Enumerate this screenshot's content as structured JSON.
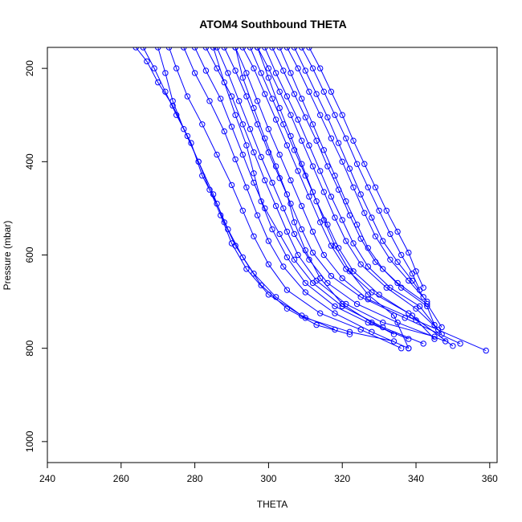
{
  "chart_data": {
    "type": "line",
    "title": "ATOM4 Southbound THETA",
    "xlabel": "THETA",
    "ylabel": "Pressure (mbar)",
    "xlim": [
      240,
      362
    ],
    "ylim": [
      1045,
      155
    ],
    "y_reversed": true,
    "grid": false,
    "legend": "none",
    "markers": "open-circle",
    "x_ticks": [
      240,
      260,
      280,
      300,
      320,
      340,
      360
    ],
    "y_ticks": [
      200,
      400,
      600,
      800,
      1000
    ],
    "series_color": "#0000ff",
    "series": [
      {
        "points": [
          [
            264,
            155
          ],
          [
            267,
            185
          ],
          [
            270,
            230
          ],
          [
            274,
            280
          ],
          [
            278,
            345
          ],
          [
            281,
            400
          ],
          [
            285,
            470
          ],
          [
            288,
            530
          ],
          [
            291,
            580
          ],
          [
            296,
            640
          ],
          [
            302,
            690
          ],
          [
            309,
            730
          ],
          [
            318,
            760
          ]
        ]
      },
      {
        "points": [
          [
            266,
            155
          ],
          [
            269,
            200
          ],
          [
            272,
            250
          ],
          [
            275,
            300
          ],
          [
            279,
            360
          ],
          [
            282,
            430
          ],
          [
            286,
            490
          ],
          [
            289,
            545
          ],
          [
            293,
            605
          ],
          [
            298,
            665
          ],
          [
            305,
            715
          ],
          [
            313,
            750
          ],
          [
            322,
            770
          ]
        ]
      },
      {
        "points": [
          [
            270,
            155
          ],
          [
            272,
            210
          ],
          [
            274,
            270
          ],
          [
            277,
            330
          ],
          [
            281,
            400
          ],
          [
            284,
            460
          ],
          [
            287,
            515
          ],
          [
            290,
            575
          ],
          [
            294,
            630
          ],
          [
            300,
            685
          ],
          [
            310,
            735
          ],
          [
            322,
            765
          ],
          [
            334,
            785
          ]
        ]
      },
      {
        "points": [
          [
            273,
            155
          ],
          [
            275,
            200
          ],
          [
            278,
            260
          ],
          [
            282,
            320
          ],
          [
            286,
            385
          ],
          [
            290,
            450
          ],
          [
            293,
            505
          ],
          [
            296,
            560
          ],
          [
            300,
            620
          ],
          [
            305,
            675
          ],
          [
            314,
            725
          ],
          [
            325,
            760
          ],
          [
            336,
            800
          ]
        ]
      },
      {
        "points": [
          [
            277,
            155
          ],
          [
            280,
            210
          ],
          [
            284,
            270
          ],
          [
            288,
            335
          ],
          [
            291,
            395
          ],
          [
            294,
            455
          ],
          [
            297,
            515
          ],
          [
            300,
            570
          ],
          [
            304,
            625
          ],
          [
            310,
            680
          ],
          [
            318,
            725
          ],
          [
            328,
            765
          ],
          [
            338,
            800
          ]
        ]
      },
      {
        "points": [
          [
            280,
            155
          ],
          [
            283,
            205
          ],
          [
            287,
            265
          ],
          [
            290,
            325
          ],
          [
            293,
            385
          ],
          [
            296,
            445
          ],
          [
            299,
            500
          ],
          [
            303,
            555
          ],
          [
            307,
            610
          ],
          [
            312,
            660
          ],
          [
            320,
            710
          ],
          [
            331,
            755
          ],
          [
            342,
            790
          ]
        ]
      },
      {
        "points": [
          [
            283,
            155
          ],
          [
            286,
            200
          ],
          [
            290,
            260
          ],
          [
            293,
            320
          ],
          [
            296,
            380
          ],
          [
            299,
            440
          ],
          [
            302,
            495
          ],
          [
            305,
            550
          ],
          [
            308,
            600
          ],
          [
            313,
            655
          ],
          [
            321,
            705
          ],
          [
            331,
            745
          ],
          [
            345,
            775
          ]
        ]
      },
      {
        "points": [
          [
            286,
            155
          ],
          [
            289,
            210
          ],
          [
            292,
            270
          ],
          [
            295,
            330
          ],
          [
            298,
            390
          ],
          [
            301,
            445
          ],
          [
            304,
            500
          ],
          [
            307,
            555
          ],
          [
            311,
            610
          ],
          [
            316,
            660
          ],
          [
            324,
            705
          ],
          [
            335,
            745
          ],
          [
            348,
            785
          ]
        ]
      },
      {
        "points": [
          [
            288,
            155
          ],
          [
            291,
            205
          ],
          [
            294,
            260
          ],
          [
            297,
            320
          ],
          [
            300,
            380
          ],
          [
            303,
            435
          ],
          [
            306,
            490
          ],
          [
            309,
            545
          ],
          [
            312,
            595
          ],
          [
            317,
            645
          ],
          [
            325,
            690
          ],
          [
            337,
            735
          ],
          [
            352,
            790
          ]
        ]
      },
      {
        "points": [
          [
            291,
            155
          ],
          [
            294,
            210
          ],
          [
            297,
            270
          ],
          [
            300,
            330
          ],
          [
            303,
            385
          ],
          [
            306,
            440
          ],
          [
            309,
            495
          ],
          [
            312,
            550
          ],
          [
            315,
            600
          ],
          [
            320,
            650
          ],
          [
            327,
            695
          ],
          [
            340,
            740
          ],
          [
            359,
            805
          ]
        ]
      },
      {
        "points": [
          [
            293,
            155
          ],
          [
            296,
            200
          ],
          [
            299,
            255
          ],
          [
            302,
            310
          ],
          [
            305,
            365
          ],
          [
            308,
            420
          ],
          [
            311,
            475
          ],
          [
            314,
            530
          ],
          [
            317,
            580
          ],
          [
            321,
            630
          ],
          [
            328,
            680
          ],
          [
            338,
            725
          ],
          [
            350,
            795
          ]
        ]
      },
      {
        "points": [
          [
            295,
            155
          ],
          [
            298,
            210
          ],
          [
            301,
            265
          ],
          [
            304,
            320
          ],
          [
            307,
            375
          ],
          [
            310,
            430
          ],
          [
            313,
            485
          ],
          [
            316,
            535
          ],
          [
            319,
            585
          ],
          [
            323,
            635
          ],
          [
            330,
            685
          ],
          [
            339,
            730
          ],
          [
            345,
            780
          ]
        ]
      },
      {
        "points": [
          [
            297,
            155
          ],
          [
            300,
            200
          ],
          [
            303,
            250
          ],
          [
            306,
            300
          ],
          [
            309,
            355
          ],
          [
            312,
            410
          ],
          [
            315,
            465
          ],
          [
            318,
            520
          ],
          [
            321,
            570
          ],
          [
            325,
            620
          ],
          [
            332,
            670
          ],
          [
            340,
            715
          ],
          [
            346,
            760
          ]
        ]
      },
      {
        "points": [
          [
            299,
            155
          ],
          [
            302,
            210
          ],
          [
            305,
            260
          ],
          [
            308,
            310
          ],
          [
            311,
            365
          ],
          [
            314,
            420
          ],
          [
            317,
            475
          ],
          [
            320,
            525
          ],
          [
            323,
            575
          ],
          [
            327,
            625
          ],
          [
            333,
            670
          ],
          [
            341,
            710
          ],
          [
            347,
            770
          ]
        ]
      },
      {
        "points": [
          [
            301,
            155
          ],
          [
            304,
            205
          ],
          [
            307,
            255
          ],
          [
            310,
            305
          ],
          [
            313,
            355
          ],
          [
            316,
            410
          ],
          [
            319,
            460
          ],
          [
            322,
            515
          ],
          [
            325,
            565
          ],
          [
            329,
            615
          ],
          [
            335,
            660
          ],
          [
            343,
            705
          ],
          [
            347,
            755
          ]
        ]
      },
      {
        "points": [
          [
            303,
            155
          ],
          [
            306,
            210
          ],
          [
            309,
            265
          ],
          [
            312,
            320
          ],
          [
            315,
            375
          ],
          [
            318,
            430
          ],
          [
            321,
            485
          ],
          [
            324,
            535
          ],
          [
            327,
            585
          ],
          [
            331,
            630
          ],
          [
            336,
            670
          ],
          [
            343,
            710
          ],
          [
            345,
            750
          ]
        ]
      },
      {
        "points": [
          [
            305,
            155
          ],
          [
            308,
            200
          ],
          [
            311,
            250
          ],
          [
            314,
            300
          ],
          [
            317,
            350
          ],
          [
            320,
            400
          ],
          [
            323,
            455
          ],
          [
            326,
            510
          ],
          [
            329,
            560
          ],
          [
            333,
            610
          ],
          [
            338,
            655
          ],
          [
            343,
            700
          ]
        ]
      },
      {
        "points": [
          [
            307,
            155
          ],
          [
            310,
            205
          ],
          [
            313,
            255
          ],
          [
            316,
            305
          ],
          [
            319,
            360
          ],
          [
            322,
            415
          ],
          [
            325,
            470
          ],
          [
            328,
            520
          ],
          [
            331,
            570
          ],
          [
            335,
            615
          ],
          [
            339,
            655
          ],
          [
            342,
            690
          ]
        ]
      },
      {
        "points": [
          [
            309,
            155
          ],
          [
            312,
            200
          ],
          [
            315,
            250
          ],
          [
            318,
            300
          ],
          [
            321,
            350
          ],
          [
            324,
            405
          ],
          [
            327,
            455
          ],
          [
            330,
            505
          ],
          [
            333,
            555
          ],
          [
            336,
            600
          ],
          [
            339,
            640
          ],
          [
            341,
            675
          ]
        ]
      },
      {
        "points": [
          [
            311,
            155
          ],
          [
            314,
            200
          ],
          [
            317,
            250
          ],
          [
            320,
            300
          ],
          [
            323,
            355
          ],
          [
            326,
            405
          ],
          [
            329,
            455
          ],
          [
            332,
            505
          ],
          [
            335,
            550
          ],
          [
            338,
            595
          ],
          [
            340,
            635
          ],
          [
            342,
            670
          ]
        ]
      },
      {
        "points": [
          [
            291,
            155
          ],
          [
            293,
            220
          ],
          [
            296,
            285
          ],
          [
            299,
            350
          ],
          [
            302,
            410
          ],
          [
            305,
            470
          ],
          [
            307,
            530
          ],
          [
            310,
            590
          ],
          [
            314,
            650
          ],
          [
            320,
            705
          ],
          [
            328,
            745
          ],
          [
            334,
            770
          ]
        ]
      },
      {
        "points": [
          [
            285,
            155
          ],
          [
            288,
            230
          ],
          [
            291,
            300
          ],
          [
            294,
            365
          ],
          [
            296,
            425
          ],
          [
            298,
            485
          ],
          [
            301,
            545
          ],
          [
            305,
            605
          ],
          [
            310,
            660
          ],
          [
            318,
            710
          ],
          [
            327,
            745
          ],
          [
            338,
            780
          ]
        ]
      },
      {
        "points": [
          [
            297,
            155
          ],
          [
            300,
            220
          ],
          [
            303,
            285
          ],
          [
            306,
            345
          ],
          [
            309,
            405
          ],
          [
            312,
            465
          ],
          [
            315,
            525
          ],
          [
            318,
            580
          ],
          [
            322,
            635
          ],
          [
            327,
            685
          ],
          [
            334,
            730
          ],
          [
            338,
            800
          ]
        ]
      }
    ]
  }
}
